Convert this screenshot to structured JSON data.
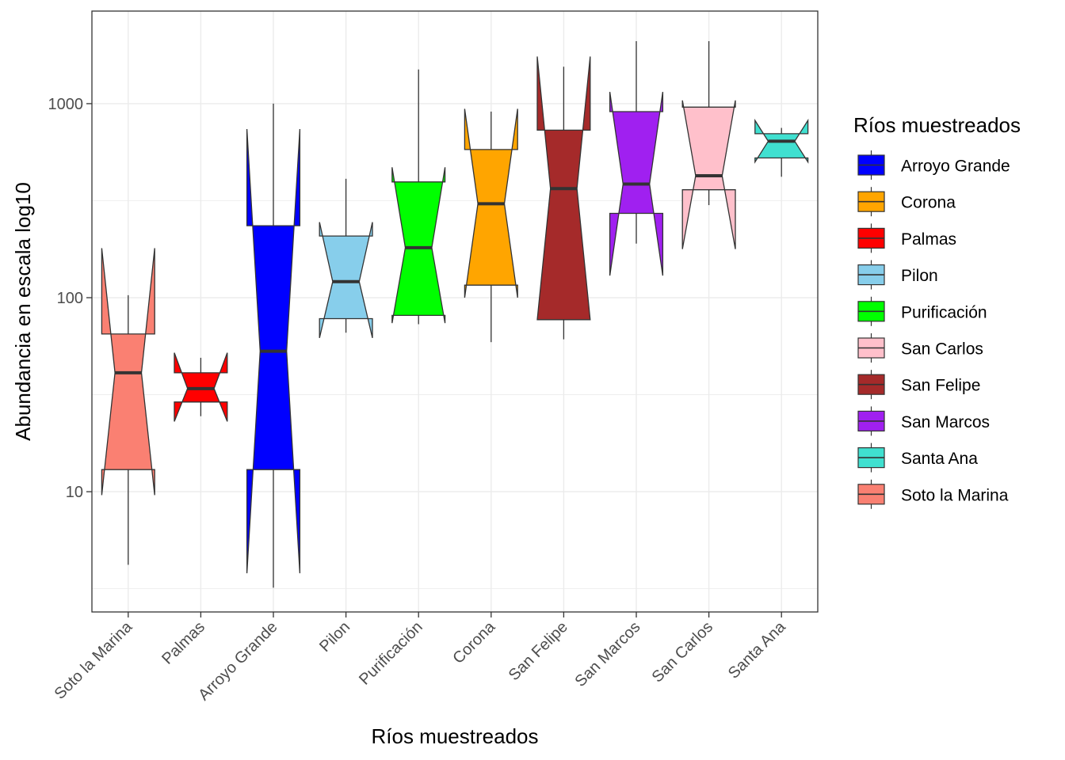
{
  "chart_data": {
    "type": "boxplot",
    "xlabel": "Ríos muestreados",
    "ylabel": "Abundancia en escala log10",
    "y_scale": "log10",
    "ylim": [
      2.4,
      3000
    ],
    "y_ticks": [
      10,
      100,
      1000
    ],
    "y_tick_labels": [
      "10",
      "100",
      "1000"
    ],
    "notched": true,
    "grid": true,
    "legend": {
      "title": "Ríos muestreados",
      "position": "right"
    },
    "categories": [
      "Soto la Marina",
      "Palmas",
      "Arroyo Grande",
      "Pilon",
      "Purificación",
      "Corona",
      "San Felipe",
      "San Marcos",
      "San Carlos",
      "Santa Ana"
    ],
    "boxes": [
      {
        "name": "Soto la Marina",
        "color": "#FA8072",
        "whisker_low": 4.2,
        "q1": 13,
        "median": 41,
        "q3": 65,
        "whisker_high": 103,
        "notch_low": 9.6,
        "notch_high": 180
      },
      {
        "name": "Palmas",
        "color": "#FF0000",
        "whisker_low": 24.5,
        "q1": 29,
        "median": 34,
        "q3": 41,
        "whisker_high": 49,
        "notch_low": 23,
        "notch_high": 52
      },
      {
        "name": "Arroyo Grande",
        "color": "#0000FF",
        "whisker_low": 3.2,
        "q1": 13,
        "median": 53,
        "q3": 235,
        "whisker_high": 1000,
        "notch_low": 3.8,
        "notch_high": 740
      },
      {
        "name": "Pilon",
        "color": "#87CEEB",
        "whisker_low": 66,
        "q1": 78,
        "median": 121,
        "q3": 208,
        "whisker_high": 410,
        "notch_low": 62,
        "notch_high": 245
      },
      {
        "name": "Purificación",
        "color": "#00FF00",
        "whisker_low": 73,
        "q1": 81,
        "median": 181,
        "q3": 395,
        "whisker_high": 1500,
        "notch_low": 74,
        "notch_high": 470
      },
      {
        "name": "Corona",
        "color": "#FFA500",
        "whisker_low": 59,
        "q1": 116,
        "median": 305,
        "q3": 580,
        "whisker_high": 910,
        "notch_low": 100,
        "notch_high": 940
      },
      {
        "name": "San Felipe",
        "color": "#A52A2A",
        "whisker_low": 61,
        "q1": 77,
        "median": 365,
        "q3": 730,
        "whisker_high": 1550,
        "notch_low": 77,
        "notch_high": 1750
      },
      {
        "name": "San Marcos",
        "color": "#A020F0",
        "whisker_low": 190,
        "q1": 272,
        "median": 385,
        "q3": 910,
        "whisker_high": 2100,
        "notch_low": 130,
        "notch_high": 1150
      },
      {
        "name": "San Carlos",
        "color": "#FFC0CB",
        "whisker_low": 300,
        "q1": 360,
        "median": 425,
        "q3": 960,
        "whisker_high": 2100,
        "notch_low": 178,
        "notch_high": 1040
      },
      {
        "name": "Santa Ana",
        "color": "#40E0D0",
        "whisker_low": 420,
        "q1": 525,
        "median": 640,
        "q3": 700,
        "whisker_high": 750,
        "notch_low": 500,
        "notch_high": 820
      }
    ],
    "legend_order": [
      "Arroyo Grande",
      "Corona",
      "Palmas",
      "Pilon",
      "Purificación",
      "San Carlos",
      "San Felipe",
      "San Marcos",
      "Santa Ana",
      "Soto la Marina"
    ]
  }
}
